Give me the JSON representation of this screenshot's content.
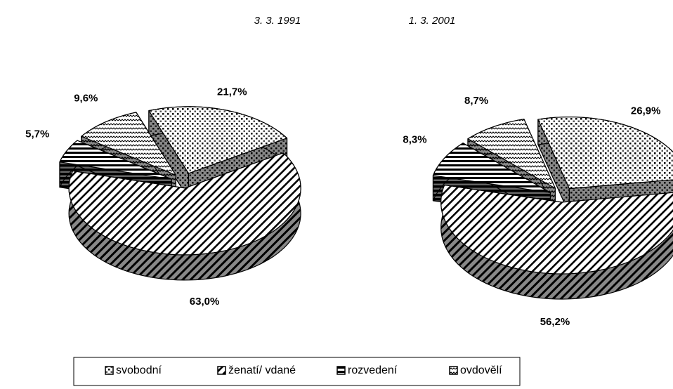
{
  "chart_data": {
    "type": "pie3d",
    "categories": [
      "svobodní",
      "ženatí/ vdané",
      "rozvedení",
      "ovdovělí"
    ],
    "series": [
      {
        "name": "3. 3. 1991",
        "values": [
          21.7,
          63.0,
          5.7,
          9.6
        ],
        "value_labels": [
          "21,7%",
          "63,0%",
          "5,7%",
          "9,6%"
        ]
      },
      {
        "name": "1. 3. 2001",
        "values": [
          26.9,
          56.2,
          8.3,
          8.7
        ],
        "value_labels": [
          "26,9%",
          "56,2%",
          "8,3%",
          "8,7%"
        ]
      }
    ],
    "legend": "bottom"
  }
}
